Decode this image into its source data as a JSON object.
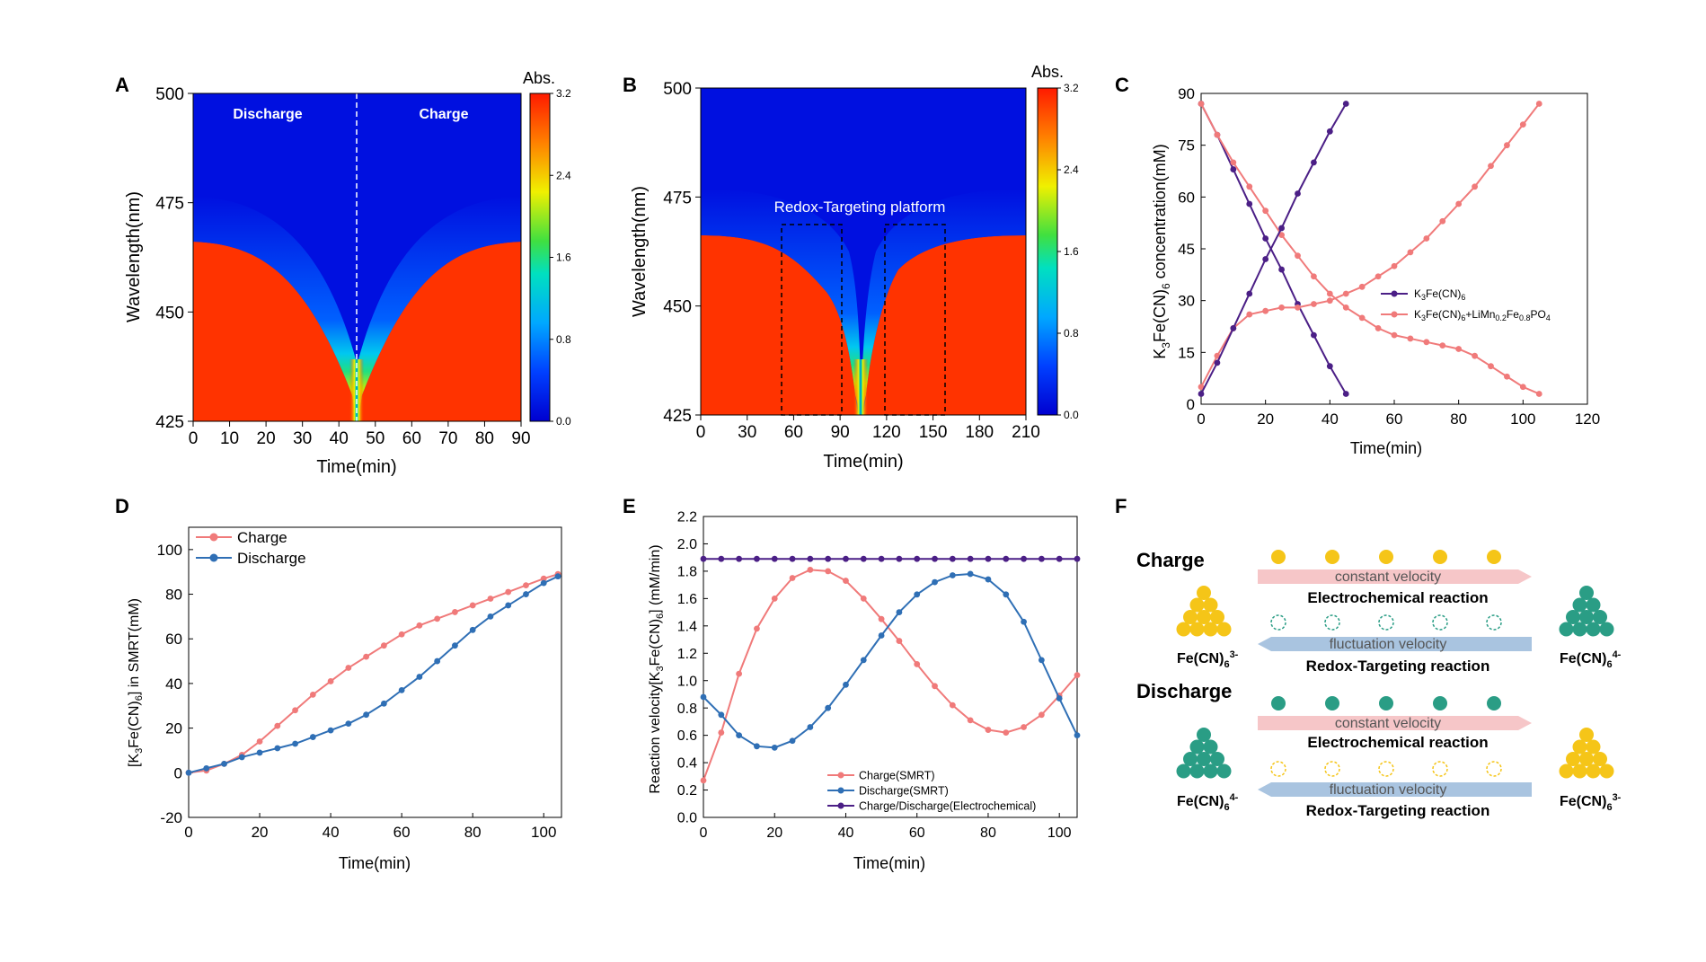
{
  "colors": {
    "charge": "#f07a7a",
    "discharge": "#2f6fb5",
    "electrochemical": "#4b1f86",
    "k3fecn6": "#4b1f86",
    "yellow_ball": "#f5c518",
    "teal_ball": "#2a9d85",
    "pink_arrow": "#f6c6c8",
    "blue_arrow": "#a9c4e0"
  },
  "chart_data": [
    {
      "id": "A",
      "type": "heatmap",
      "panel_label": "A",
      "xlabel": "Time(min)",
      "ylabel": "Wavelength(nm)",
      "xlim": [
        0,
        90
      ],
      "ylim": [
        425,
        500
      ],
      "xticks": [
        "0",
        "10",
        "20",
        "30",
        "40",
        "50",
        "60",
        "70",
        "80",
        "90"
      ],
      "yticks": [
        "425",
        "450",
        "475",
        "500"
      ],
      "colorbar": {
        "title": "Abs.",
        "range": [
          0,
          3.2
        ],
        "ticks": [
          "0.0",
          "0.8",
          "1.6",
          "2.4",
          "3.2"
        ]
      },
      "annotations": [
        "Discharge",
        "Charge"
      ],
      "divider_x": 45
    },
    {
      "id": "B",
      "type": "heatmap",
      "panel_label": "B",
      "xlabel": "Time(min)",
      "ylabel": "Wavelength(nm)",
      "xlim": [
        0,
        210
      ],
      "ylim": [
        425,
        500
      ],
      "xticks": [
        "0",
        "30",
        "60",
        "90",
        "120",
        "150",
        "180",
        "210"
      ],
      "yticks": [
        "425",
        "450",
        "475",
        "500"
      ],
      "colorbar": {
        "title": "Abs.",
        "range": [
          0,
          3.2
        ],
        "ticks": [
          "0.0",
          "0.8",
          "1.6",
          "2.4",
          "3.2"
        ]
      },
      "annotations": [
        "Redox-Targeting platform"
      ],
      "boxes": [
        {
          "x": [
            52,
            92
          ],
          "y": [
            425,
            469
          ]
        },
        {
          "x": [
            120,
            159
          ],
          "y": [
            425,
            469
          ]
        }
      ]
    },
    {
      "id": "C",
      "type": "line",
      "panel_label": "C",
      "xlabel": "Time(min)",
      "ylabel": "K3Fe(CN)6 concentration(mM)",
      "xlim": [
        0,
        120
      ],
      "ylim": [
        0,
        90
      ],
      "xticks": [
        "0",
        "20",
        "40",
        "60",
        "80",
        "100",
        "120"
      ],
      "yticks": [
        "0",
        "15",
        "30",
        "45",
        "60",
        "75",
        "90"
      ],
      "legend": "center-right",
      "series": [
        {
          "name": "K3Fe(CN)6",
          "color": "#4b1f86",
          "x": [
            0,
            5,
            10,
            15,
            20,
            25,
            30,
            35,
            40,
            45
          ],
          "y": [
            87,
            78,
            68,
            58,
            48,
            39,
            29,
            20,
            11,
            3
          ]
        },
        {
          "name": "K3Fe(CN)6+LiMn0.2Fe0.8PO4",
          "color": "#f07a7a",
          "x": [
            0,
            5,
            10,
            15,
            20,
            25,
            30,
            35,
            40,
            45,
            50,
            55,
            60,
            65,
            70,
            75,
            80,
            85,
            90,
            95,
            100,
            105
          ],
          "y": [
            87,
            78,
            70,
            63,
            56,
            49,
            43,
            37,
            32,
            28,
            25,
            22,
            20,
            19,
            18,
            17,
            16,
            14,
            11,
            8,
            5,
            3
          ]
        },
        {
          "name": "",
          "color": "#f07a7a",
          "x": [
            0,
            5,
            10,
            15,
            20,
            25,
            30,
            35,
            40,
            45,
            50,
            55,
            60,
            65,
            70,
            75,
            80,
            85,
            90,
            95,
            100,
            105
          ],
          "y": [
            5,
            14,
            22,
            26,
            27,
            28,
            28,
            29,
            30,
            32,
            34,
            37,
            40,
            44,
            48,
            53,
            58,
            63,
            69,
            75,
            81,
            87
          ]
        },
        {
          "name": "",
          "color": "#4b1f86",
          "x": [
            0,
            5,
            10,
            15,
            20,
            25,
            30,
            35,
            40,
            45
          ],
          "y": [
            3,
            12,
            22,
            32,
            42,
            51,
            61,
            70,
            79,
            87
          ]
        }
      ]
    },
    {
      "id": "D",
      "type": "line",
      "panel_label": "D",
      "xlabel": "Time(min)",
      "ylabel": "[K3Fe(CN)6] in SMRT(mM)",
      "xlim": [
        0,
        105
      ],
      "ylim": [
        -20,
        110
      ],
      "xticks": [
        "0",
        "20",
        "40",
        "60",
        "80",
        "100"
      ],
      "yticks": [
        "-20",
        "0",
        "20",
        "40",
        "60",
        "80",
        "100"
      ],
      "legend": "top-left",
      "series": [
        {
          "name": "Charge",
          "color": "#f07a7a",
          "x": [
            0,
            5,
            10,
            15,
            20,
            25,
            30,
            35,
            40,
            45,
            50,
            55,
            60,
            65,
            70,
            75,
            80,
            85,
            90,
            95,
            100,
            104
          ],
          "y": [
            0,
            1,
            4,
            8,
            14,
            21,
            28,
            35,
            41,
            47,
            52,
            57,
            62,
            66,
            69,
            72,
            75,
            78,
            81,
            84,
            87,
            89
          ]
        },
        {
          "name": "Discharge",
          "color": "#2f6fb5",
          "x": [
            0,
            5,
            10,
            15,
            20,
            25,
            30,
            35,
            40,
            45,
            50,
            55,
            60,
            65,
            70,
            75,
            80,
            85,
            90,
            95,
            100,
            104
          ],
          "y": [
            0,
            2,
            4,
            7,
            9,
            11,
            13,
            16,
            19,
            22,
            26,
            31,
            37,
            43,
            50,
            57,
            64,
            70,
            75,
            80,
            85,
            88
          ]
        }
      ]
    },
    {
      "id": "E",
      "type": "line",
      "panel_label": "E",
      "xlabel": "Time(min)",
      "ylabel": "Reaction velocity[K3Fe(CN)6] (mM/min)",
      "xlim": [
        0,
        105
      ],
      "ylim": [
        0,
        2.2
      ],
      "xticks": [
        "0",
        "20",
        "40",
        "60",
        "80",
        "100"
      ],
      "yticks": [
        "0.0",
        "0.2",
        "0.4",
        "0.6",
        "0.8",
        "1.0",
        "1.2",
        "1.4",
        "1.6",
        "1.8",
        "2.0",
        "2.2"
      ],
      "legend": "bottom-right",
      "series": [
        {
          "name": "Charge(SMRT)",
          "color": "#f07a7a",
          "x": [
            0,
            5,
            10,
            15,
            20,
            25,
            30,
            35,
            40,
            45,
            50,
            55,
            60,
            65,
            70,
            75,
            80,
            85,
            90,
            95,
            100,
            105
          ],
          "y": [
            0.27,
            0.62,
            1.05,
            1.38,
            1.6,
            1.75,
            1.81,
            1.8,
            1.73,
            1.6,
            1.45,
            1.29,
            1.12,
            0.96,
            0.82,
            0.71,
            0.64,
            0.62,
            0.66,
            0.75,
            0.89,
            1.04
          ]
        },
        {
          "name": "Discharge(SMRT)",
          "color": "#2f6fb5",
          "x": [
            0,
            5,
            10,
            15,
            20,
            25,
            30,
            35,
            40,
            45,
            50,
            55,
            60,
            65,
            70,
            75,
            80,
            85,
            90,
            95,
            100,
            105
          ],
          "y": [
            0.88,
            0.75,
            0.6,
            0.52,
            0.51,
            0.56,
            0.66,
            0.8,
            0.97,
            1.15,
            1.33,
            1.5,
            1.63,
            1.72,
            1.77,
            1.78,
            1.74,
            1.63,
            1.43,
            1.15,
            0.87,
            0.6
          ]
        },
        {
          "name": "Charge/Discharge(Electrochemical)",
          "color": "#4b1f86",
          "x": [
            0,
            5,
            10,
            15,
            20,
            25,
            30,
            35,
            40,
            45,
            50,
            55,
            60,
            65,
            70,
            75,
            80,
            85,
            90,
            95,
            100,
            105
          ],
          "y": [
            1.89,
            1.89,
            1.89,
            1.89,
            1.89,
            1.89,
            1.89,
            1.89,
            1.89,
            1.89,
            1.89,
            1.89,
            1.89,
            1.89,
            1.89,
            1.89,
            1.89,
            1.89,
            1.89,
            1.89,
            1.89,
            1.89
          ]
        }
      ]
    }
  ],
  "panelF": {
    "label": "F",
    "charge_title": "Charge",
    "discharge_title": "Discharge",
    "constant_velocity": "constant velocity",
    "fluctuation_velocity": "fluctuation velocity",
    "electrochemical_reaction": "Electrochemical reaction",
    "redox_targeting_reaction": "Redox-Targeting reaction",
    "fe3_label": "Fe(CN)6 3-",
    "fe4_label": "Fe(CN)6 4-"
  }
}
